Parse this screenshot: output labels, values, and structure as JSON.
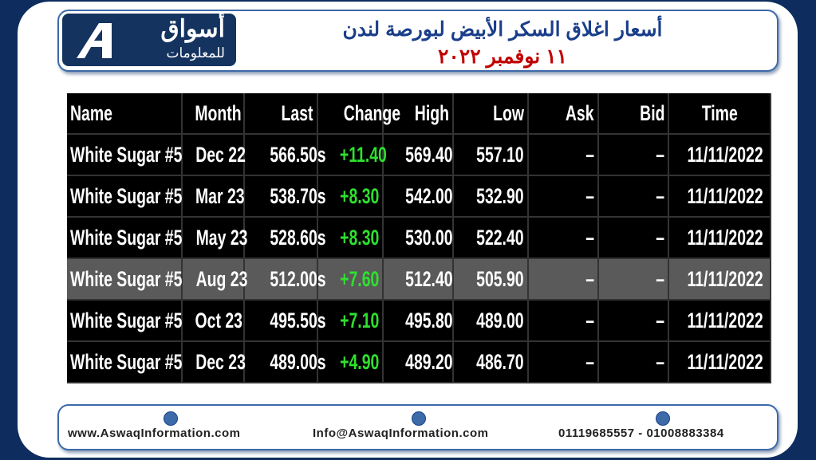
{
  "header": {
    "logo_name": "أسواق",
    "logo_sub": "للمعلومات",
    "title": "أسعار اغلاق السكر الأبيض لبورصة لندن",
    "date": "١١ نوفمبر ٢٠٢٢"
  },
  "table": {
    "columns": [
      "Name",
      "Month",
      "Last",
      "Change",
      "High",
      "Low",
      "Ask",
      "Bid",
      "Time"
    ],
    "rows": [
      [
        "White Sugar #5",
        "Dec 22",
        "566.50s",
        "+11.40",
        "569.40",
        "557.10",
        "–",
        "–",
        "11/11/2022"
      ],
      [
        "White Sugar #5",
        "Mar 23",
        "538.70s",
        "+8.30",
        "542.00",
        "532.90",
        "–",
        "–",
        "11/11/2022"
      ],
      [
        "White Sugar #5",
        "May 23",
        "528.60s",
        "+8.30",
        "530.00",
        "522.40",
        "–",
        "–",
        "11/11/2022"
      ],
      [
        "White Sugar #5",
        "Aug 23",
        "512.00s",
        "+7.60",
        "512.40",
        "505.90",
        "–",
        "–",
        "11/11/2022"
      ],
      [
        "White Sugar #5",
        "Oct 23",
        "495.50s",
        "+7.10",
        "495.80",
        "489.00",
        "–",
        "–",
        "11/11/2022"
      ],
      [
        "White Sugar #5",
        "Dec 23",
        "489.00s",
        "+4.90",
        "489.20",
        "486.70",
        "–",
        "–",
        "11/11/2022"
      ]
    ]
  },
  "footer": {
    "website": "www.AswaqInformation.com",
    "email": "Info@AswaqInformation.com",
    "phones": "01119685557 - 01008883384"
  }
}
